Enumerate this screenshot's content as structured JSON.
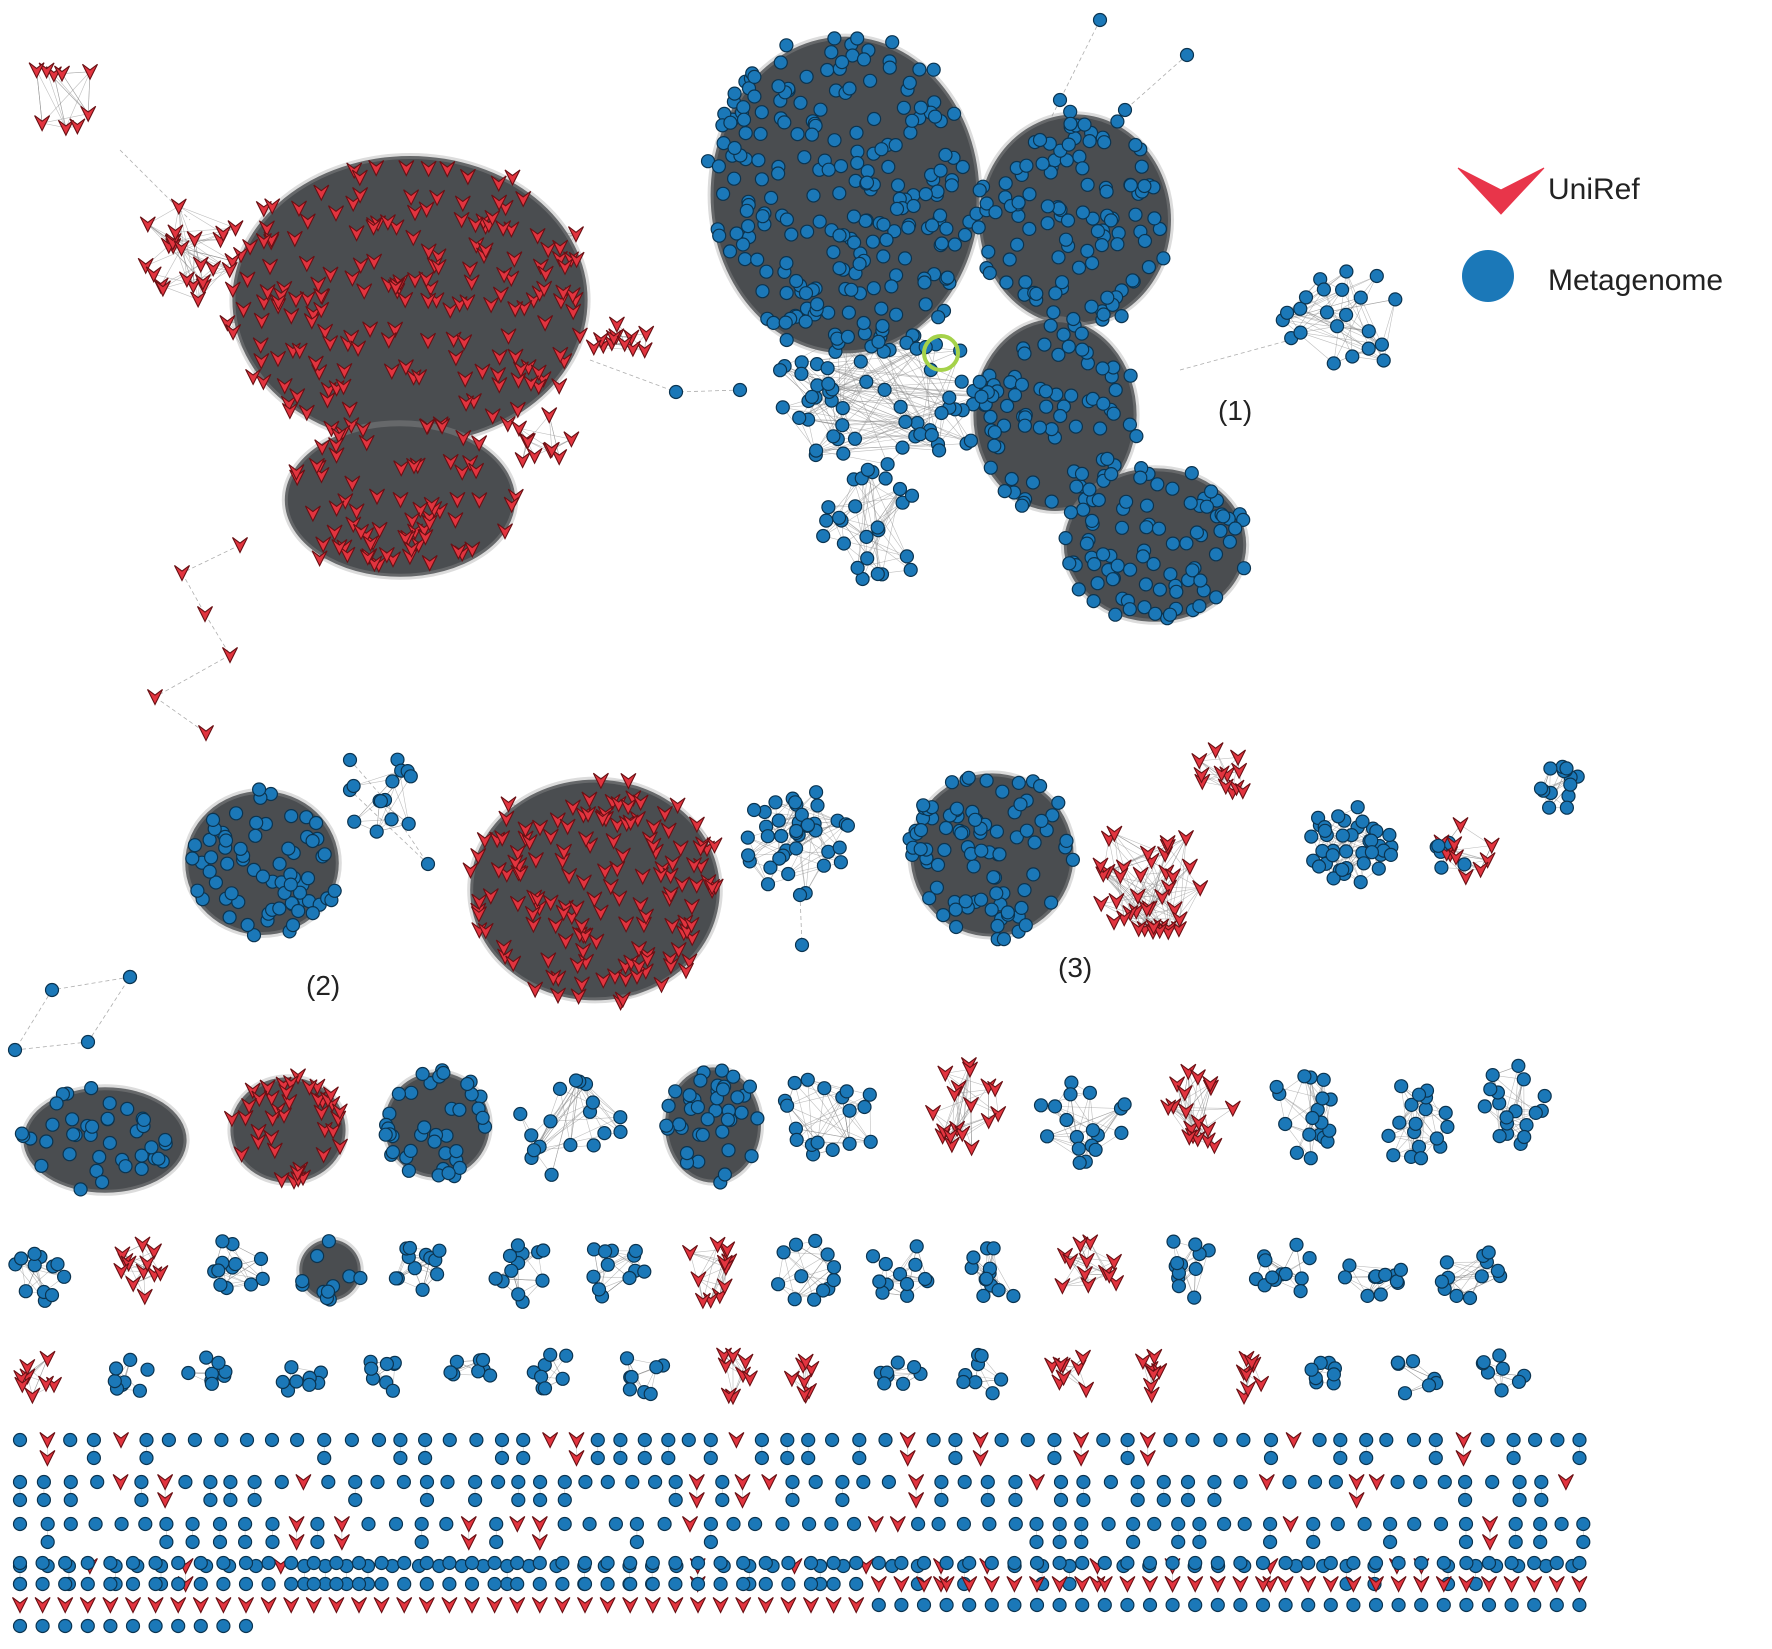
{
  "legend": {
    "uniref": {
      "label": "UniRef",
      "icon": "red-arrowhead-icon",
      "color": "#e8354a"
    },
    "metagenome": {
      "label": "Metagenome",
      "icon": "blue-circle-icon",
      "color": "#1b78b8"
    }
  },
  "cluster_labels": {
    "c1": "(1)",
    "c2": "(2)",
    "c3": "(3)"
  },
  "colors": {
    "metagenome_node": "#1b78b8",
    "uniref_node": "#e2343f",
    "dense_cluster_fill": "#4a4d50",
    "highlight_ring": "#a5d24a"
  }
}
